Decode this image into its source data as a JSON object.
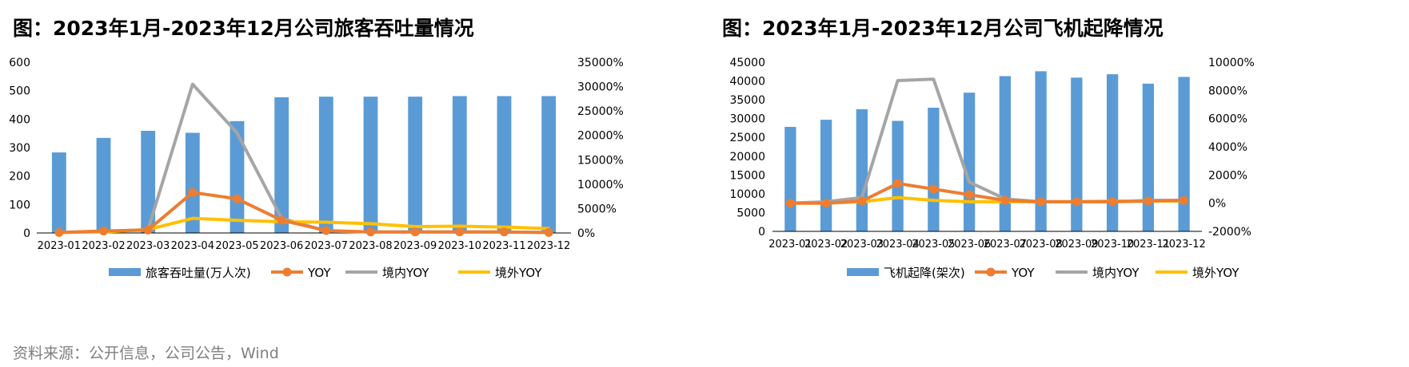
{
  "source": "资料来源：公开信息，公司公告，Wind",
  "chart_data": [
    {
      "type": "bar+line",
      "title": "图：2023年1月-2023年12月公司旅客吞吐量情况",
      "categories": [
        "2023-01",
        "2023-02",
        "2023-03",
        "2023-04",
        "2023-05",
        "2023-06",
        "2023-07",
        "2023-08",
        "2023-09",
        "2023-10",
        "2023-11",
        "2023-12"
      ],
      "left_axis": {
        "min": 0,
        "max": 600,
        "ticks": [
          "0",
          "100",
          "200",
          "300",
          "400",
          "500",
          "600"
        ]
      },
      "right_axis": {
        "min": 0,
        "max": 35000,
        "ticks": [
          "0%",
          "5000%",
          "10000%",
          "15000%",
          "20000%",
          "25000%",
          "30000%",
          "35000%"
        ]
      },
      "bar_series": {
        "name": "旅客吞吐量(万人次)",
        "color": "#5b9bd5",
        "values": [
          283,
          334,
          359,
          352,
          393,
          477,
          479,
          479,
          479,
          481,
          481,
          481
        ]
      },
      "line_series": [
        {
          "name": "YOY",
          "color": "#ed7d31",
          "values": [
            100,
            400,
            600,
            8300,
            7000,
            2600,
            500,
            200,
            200,
            200,
            200,
            100
          ]
        },
        {
          "name": "境内YOY",
          "color": "#a5a5a5",
          "values": [
            100,
            300,
            700,
            30500,
            20500,
            3000,
            400,
            200,
            200,
            200,
            200,
            100
          ]
        },
        {
          "name": "境外YOY",
          "color": "#ffc000",
          "values": [
            100,
            200,
            700,
            3000,
            2600,
            2300,
            2200,
            1900,
            1300,
            1400,
            1200,
            900
          ]
        }
      ],
      "legend_position": "bottom"
    },
    {
      "type": "bar+line",
      "title": "图：2023年1月-2023年12月公司飞机起降情况",
      "categories": [
        "2023-01",
        "2023-02",
        "2023-03",
        "2023-04",
        "2023-05",
        "2023-06",
        "2023-07",
        "2023-08",
        "2023-09",
        "2023-10",
        "2023-11",
        "2023-12"
      ],
      "left_axis": {
        "min": 0,
        "max": 45000,
        "ticks": [
          "0",
          "5000",
          "10000",
          "15000",
          "20000",
          "25000",
          "30000",
          "35000",
          "40000",
          "45000"
        ]
      },
      "right_axis": {
        "min": -2000,
        "max": 10000,
        "ticks": [
          "-2000%",
          "0%",
          "2000%",
          "4000%",
          "6000%",
          "8000%",
          "10000%"
        ]
      },
      "bar_series": {
        "name": "飞机起降(架次)",
        "color": "#5b9bd5",
        "values": [
          27800,
          29700,
          32500,
          29400,
          32900,
          36900,
          41300,
          42600,
          40900,
          41800,
          39300,
          41100
        ]
      },
      "line_series": [
        {
          "name": "YOY",
          "color": "#ed7d31",
          "values": [
            0,
            0,
            150,
            1400,
            1000,
            600,
            200,
            100,
            100,
            100,
            150,
            200
          ]
        },
        {
          "name": "境内YOY",
          "color": "#a5a5a5",
          "values": [
            0,
            100,
            400,
            8700,
            8800,
            1500,
            300,
            100,
            100,
            100,
            200,
            200
          ]
        },
        {
          "name": "境外YOY",
          "color": "#ffc000",
          "values": [
            0,
            0,
            100,
            400,
            200,
            100,
            100,
            100,
            100,
            150,
            150,
            150
          ]
        }
      ],
      "legend_position": "bottom"
    }
  ]
}
